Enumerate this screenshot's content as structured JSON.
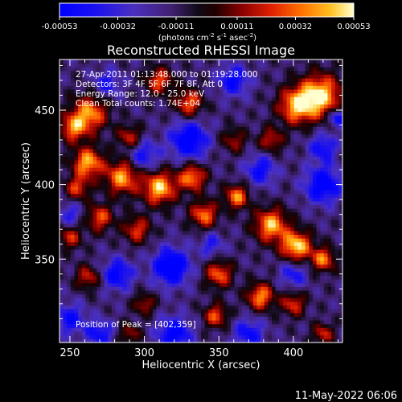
{
  "chart_data": {
    "type": "heatmap",
    "title": "Reconstructed RHESSI Image",
    "xlabel": "Heliocentric X (arcsec)",
    "ylabel": "Heliocentric Y (arcsec)",
    "xlim": [
      243,
      433
    ],
    "ylim": [
      294,
      484
    ],
    "x_ticks": [
      250,
      300,
      350,
      400
    ],
    "y_ticks": [
      350,
      400,
      450
    ],
    "colorbar": {
      "label": "(photons cm",
      "label_sup1": "-2",
      "label_mid1": " s",
      "label_sup2": "-1",
      "label_mid2": " asec",
      "label_sup3": "-2",
      "label_end": ")",
      "ticks": [
        "-0.00053",
        "-0.00032",
        "-0.00011",
        "0.00011",
        "0.00032",
        "0.00053"
      ],
      "range": [
        -0.00053,
        0.00053
      ]
    },
    "annotations": {
      "time": "27-Apr-2011 01:13:48.000 to 01:19:28.000",
      "detectors": "Detectors: 3F 4F 5F 6F 7F 8F, Att 0",
      "energy": "Energy Range: 12.0 - 25.0 keV",
      "clean": "Clean     Total counts: 1.74E+04",
      "peak": "Position of Peak = [402,359]"
    },
    "peak": [
      402,
      359
    ],
    "blobs": [
      {
        "x": 418,
        "y": 460,
        "v": 1.0,
        "r": 14
      },
      {
        "x": 402,
        "y": 453,
        "v": 0.85,
        "r": 12
      },
      {
        "x": 263,
        "y": 448,
        "v": 0.82,
        "r": 12
      },
      {
        "x": 252,
        "y": 438,
        "v": 0.7,
        "r": 9
      },
      {
        "x": 310,
        "y": 470,
        "v": 0.65,
        "r": 9
      },
      {
        "x": 330,
        "y": 455,
        "v": 0.7,
        "r": 9
      },
      {
        "x": 290,
        "y": 432,
        "v": 0.55,
        "r": 8
      },
      {
        "x": 262,
        "y": 415,
        "v": 0.9,
        "r": 10
      },
      {
        "x": 285,
        "y": 405,
        "v": 0.85,
        "r": 11
      },
      {
        "x": 310,
        "y": 398,
        "v": 0.95,
        "r": 11
      },
      {
        "x": 332,
        "y": 405,
        "v": 0.8,
        "r": 9
      },
      {
        "x": 255,
        "y": 398,
        "v": 0.6,
        "r": 8
      },
      {
        "x": 270,
        "y": 378,
        "v": 0.65,
        "r": 9
      },
      {
        "x": 250,
        "y": 365,
        "v": 0.55,
        "r": 8
      },
      {
        "x": 295,
        "y": 370,
        "v": 0.6,
        "r": 9
      },
      {
        "x": 340,
        "y": 380,
        "v": 0.75,
        "r": 9
      },
      {
        "x": 362,
        "y": 392,
        "v": 0.8,
        "r": 8
      },
      {
        "x": 385,
        "y": 373,
        "v": 0.9,
        "r": 11
      },
      {
        "x": 402,
        "y": 359,
        "v": 1.0,
        "r": 10
      },
      {
        "x": 420,
        "y": 350,
        "v": 0.75,
        "r": 8
      },
      {
        "x": 350,
        "y": 340,
        "v": 0.7,
        "r": 9
      },
      {
        "x": 378,
        "y": 325,
        "v": 0.8,
        "r": 9
      },
      {
        "x": 348,
        "y": 312,
        "v": 0.65,
        "r": 8
      },
      {
        "x": 262,
        "y": 338,
        "v": 0.55,
        "r": 8
      },
      {
        "x": 400,
        "y": 320,
        "v": 0.6,
        "r": 8
      },
      {
        "x": 420,
        "y": 300,
        "v": 0.55,
        "r": 7
      },
      {
        "x": 300,
        "y": 320,
        "v": 0.5,
        "r": 7
      },
      {
        "x": 385,
        "y": 430,
        "v": 0.55,
        "r": 8
      },
      {
        "x": 360,
        "y": 430,
        "v": 0.45,
        "r": 8
      },
      {
        "x": 290,
        "y": 300,
        "v": 0.45,
        "r": 7
      },
      {
        "x": 318,
        "y": 345,
        "v": -0.85,
        "r": 12
      },
      {
        "x": 330,
        "y": 430,
        "v": -0.8,
        "r": 12
      },
      {
        "x": 282,
        "y": 340,
        "v": -0.65,
        "r": 10
      },
      {
        "x": 300,
        "y": 420,
        "v": -0.5,
        "r": 10
      },
      {
        "x": 420,
        "y": 400,
        "v": -0.75,
        "r": 12
      },
      {
        "x": 420,
        "y": 425,
        "v": -0.55,
        "r": 9
      },
      {
        "x": 378,
        "y": 410,
        "v": -0.55,
        "r": 10
      },
      {
        "x": 360,
        "y": 470,
        "v": -0.6,
        "r": 10
      },
      {
        "x": 275,
        "y": 468,
        "v": -0.45,
        "r": 9
      },
      {
        "x": 320,
        "y": 300,
        "v": -0.7,
        "r": 11
      },
      {
        "x": 370,
        "y": 300,
        "v": -0.55,
        "r": 10
      },
      {
        "x": 250,
        "y": 310,
        "v": -0.55,
        "r": 10
      },
      {
        "x": 270,
        "y": 300,
        "v": -0.55,
        "r": 9
      },
      {
        "x": 400,
        "y": 340,
        "v": -0.45,
        "r": 9
      },
      {
        "x": 430,
        "y": 445,
        "v": -0.7,
        "r": 6
      },
      {
        "x": 345,
        "y": 360,
        "v": -0.4,
        "r": 8
      },
      {
        "x": 250,
        "y": 380,
        "v": -0.4,
        "r": 8
      }
    ],
    "background": -0.25
  },
  "footer": {
    "date": "11-May-2022 06:06"
  }
}
